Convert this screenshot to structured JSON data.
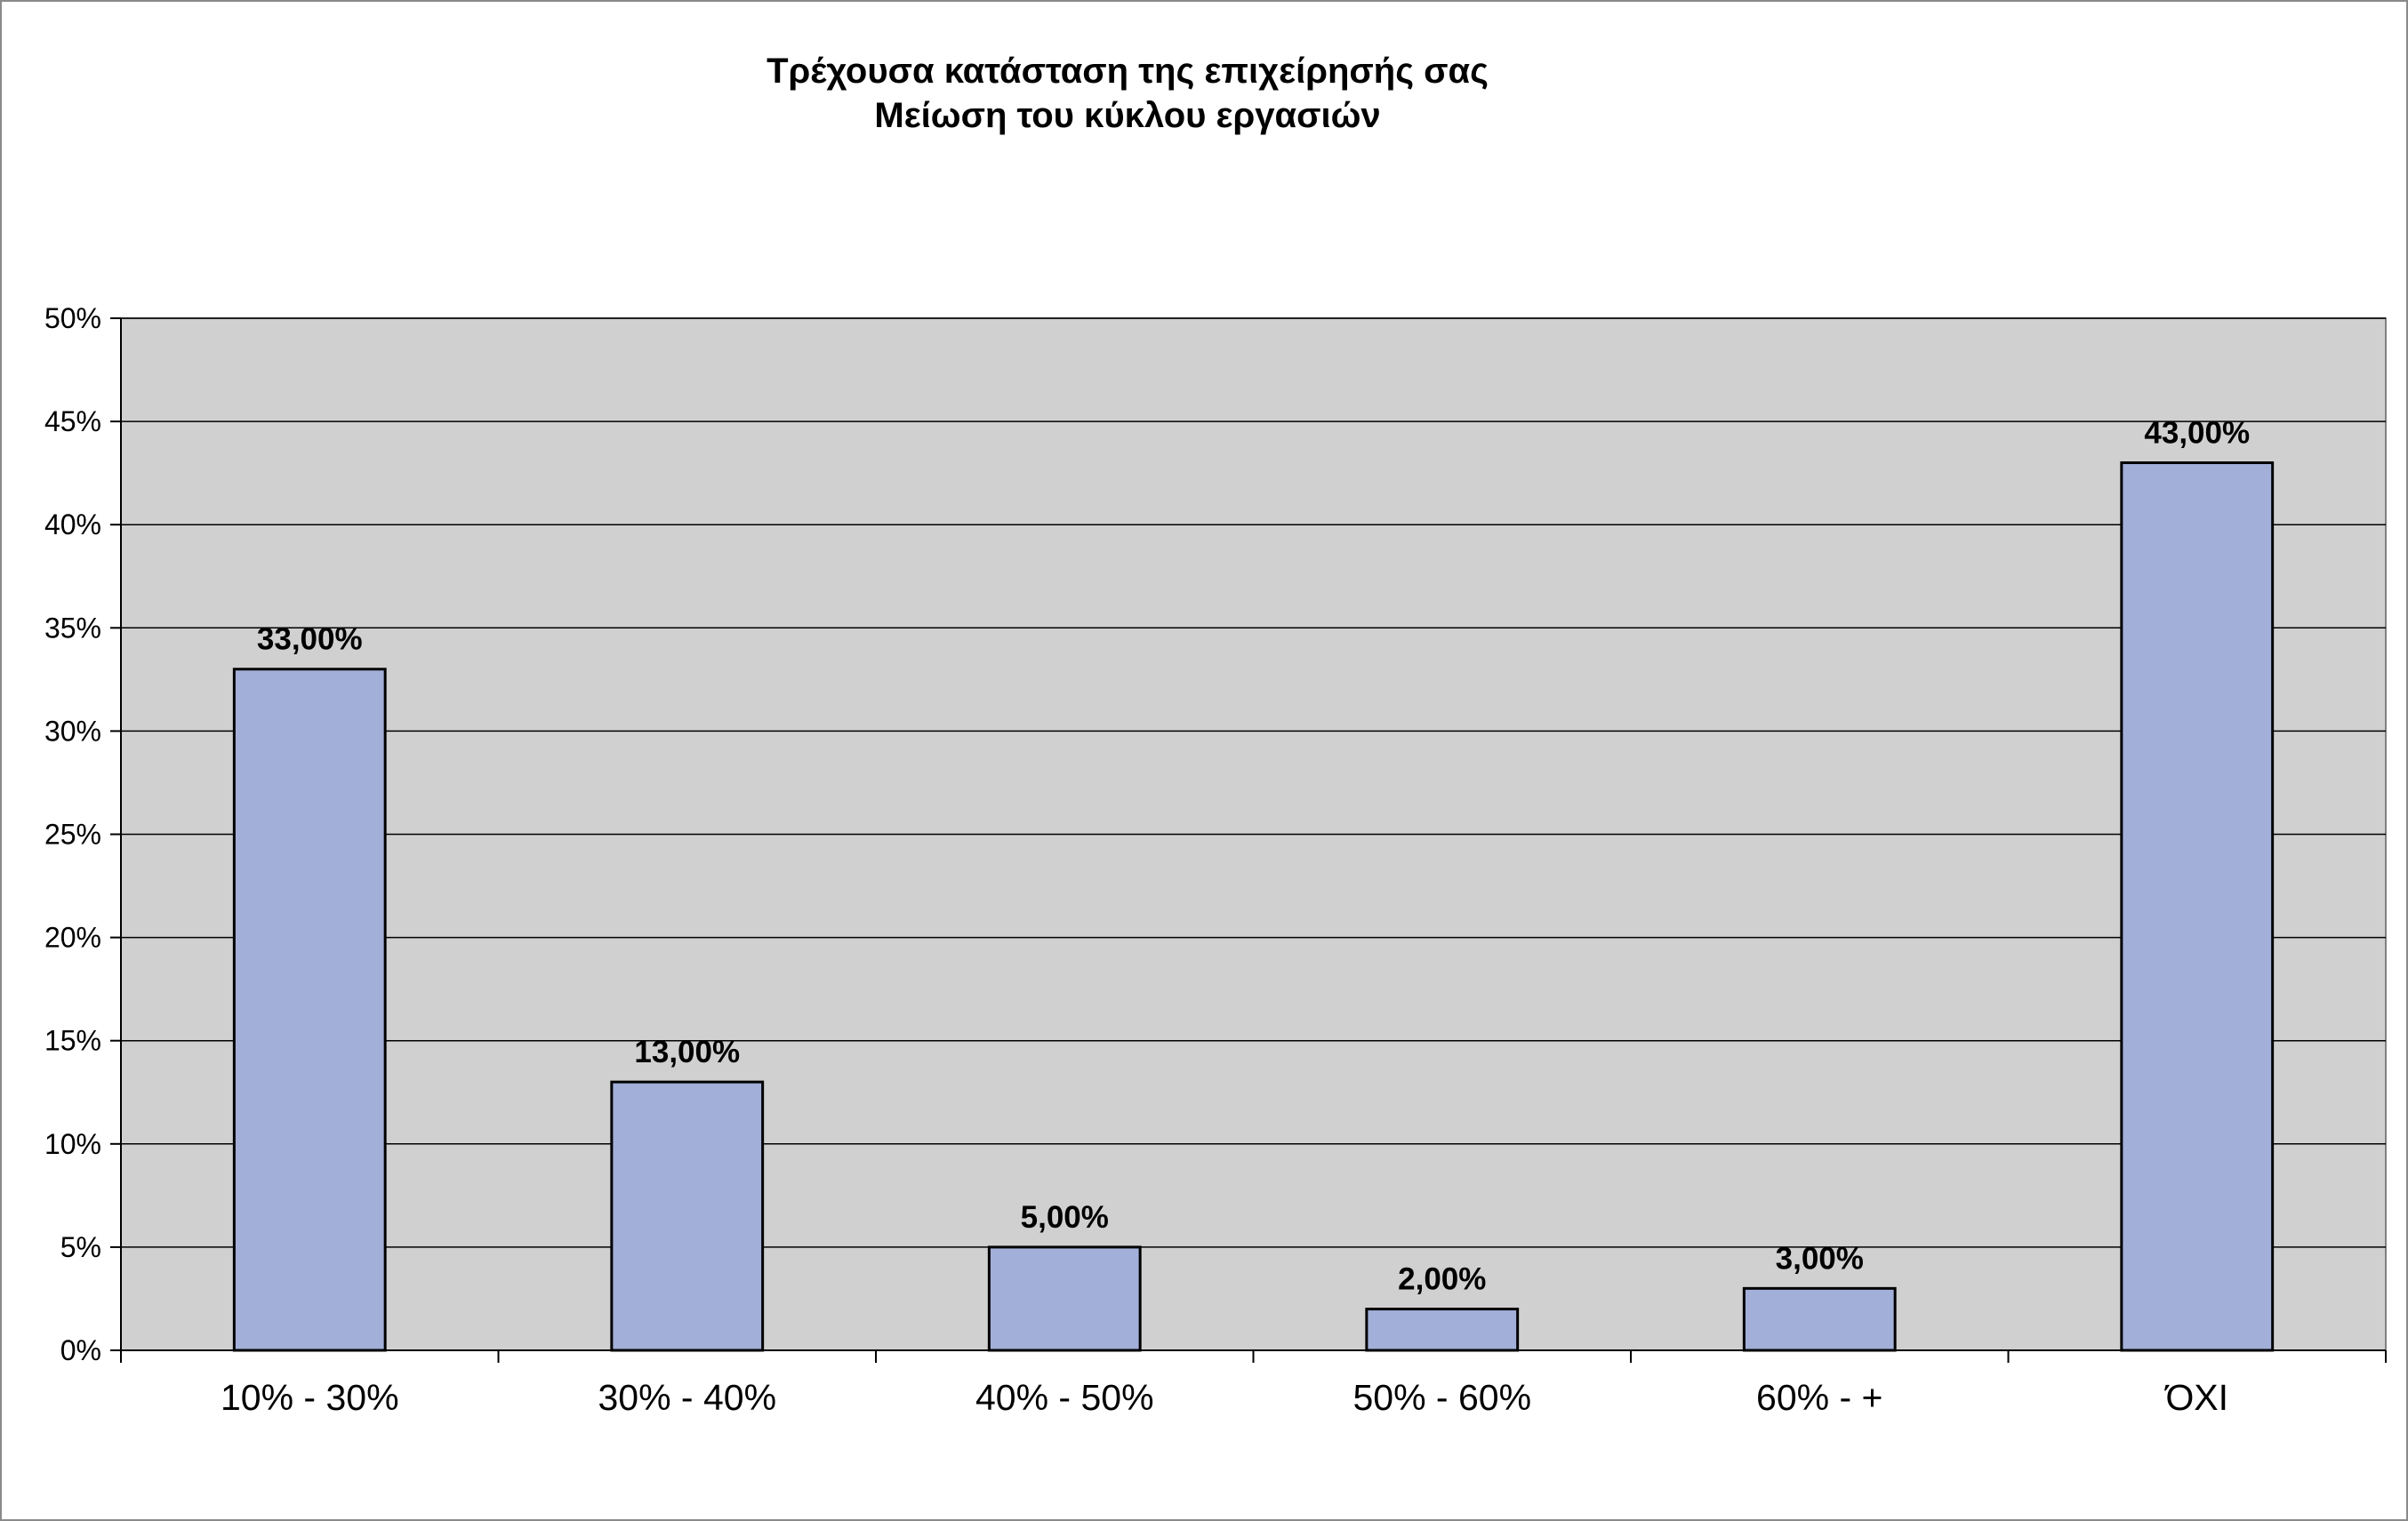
{
  "chart_data": {
    "type": "bar",
    "title": "Τρέχουσα κατάσταση της επιχείρησής σας",
    "subtitle": "Μείωση του κύκλου εργασιών",
    "categories": [
      "10% - 30%",
      "30% - 40%",
      "40% - 50%",
      "50% - 60%",
      "60% - +",
      "ΌΧΙ"
    ],
    "values": [
      33,
      13,
      5,
      2,
      3,
      43
    ],
    "data_labels": [
      "33,00%",
      "13,00%",
      "5,00%",
      "2,00%",
      "3,00%",
      "43,00%"
    ],
    "y_ticks": [
      0,
      5,
      10,
      15,
      20,
      25,
      30,
      35,
      40,
      45,
      50
    ],
    "y_tick_labels": [
      "0%",
      "5%",
      "10%",
      "15%",
      "20%",
      "25%",
      "30%",
      "35%",
      "40%",
      "45%",
      "50%"
    ],
    "ylim": [
      0,
      50
    ],
    "xlabel": "",
    "ylabel": "",
    "grid": true,
    "legend": false,
    "colors": {
      "bar_fill": "#a2afd8",
      "bar_stroke": "#000000",
      "plot_background": "#d0d0d0",
      "gridline": "#000000"
    }
  }
}
